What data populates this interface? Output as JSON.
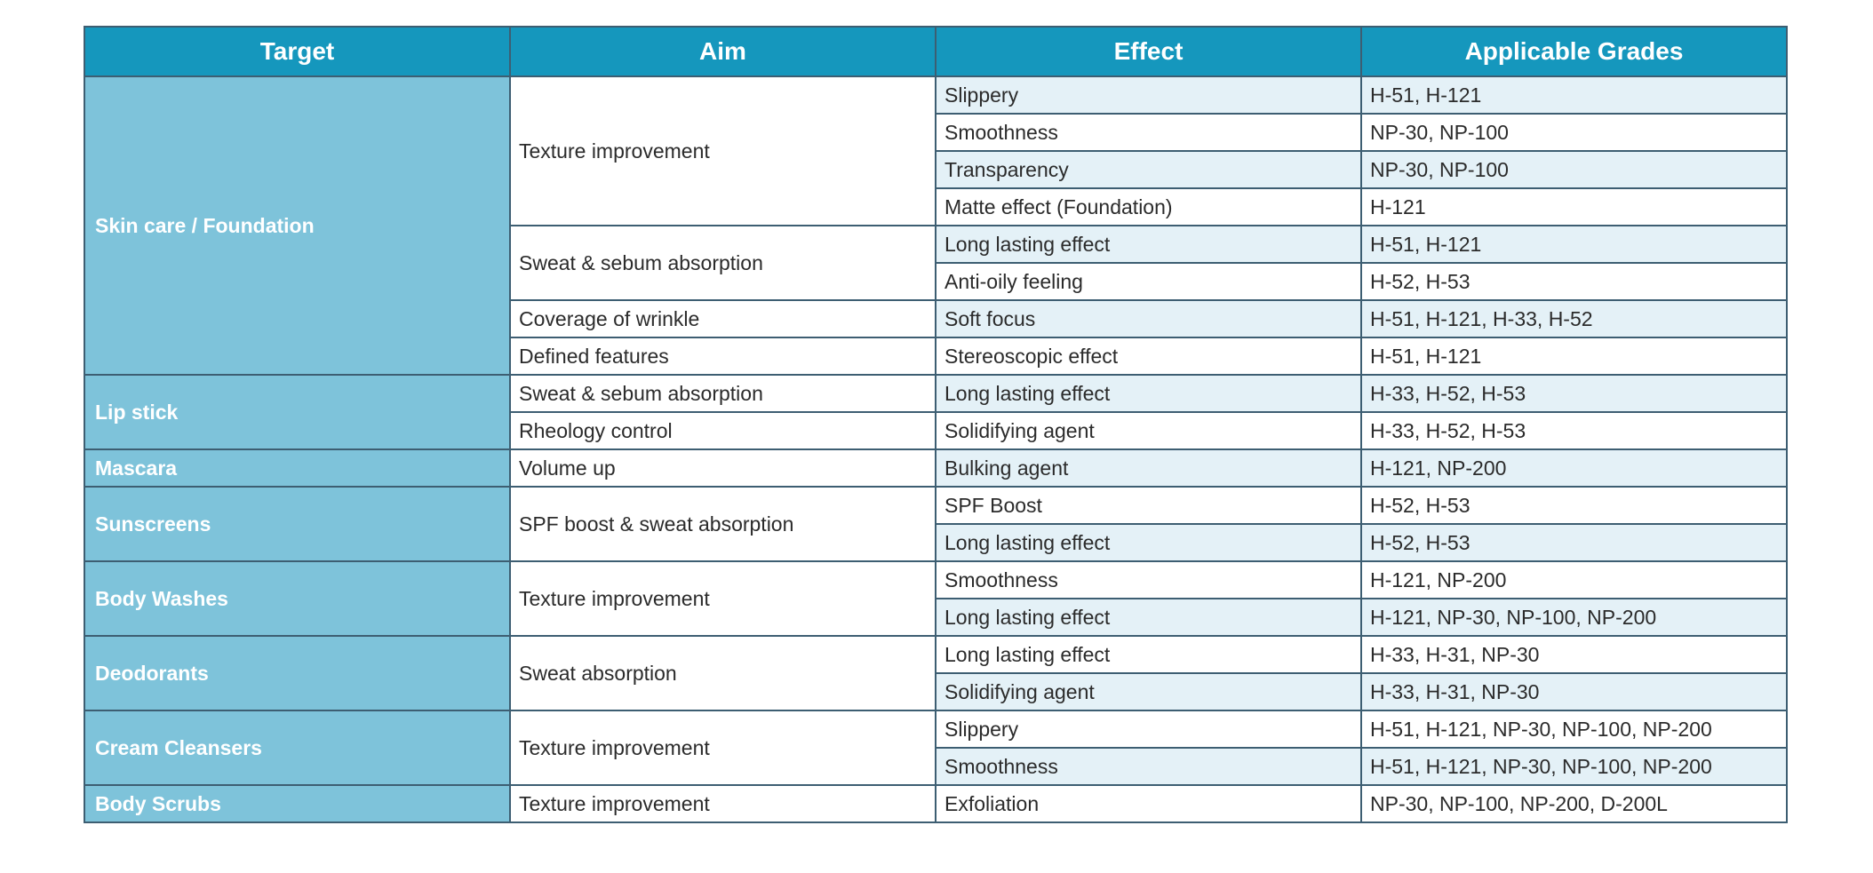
{
  "colors": {
    "header_bg": "#1597bd",
    "target_bg": "#7ec3da",
    "row_shade": "#e4f1f7",
    "border": "#3d5e72"
  },
  "table": {
    "headers": [
      "Target",
      "Aim",
      "Effect",
      "Applicable Grades"
    ],
    "targets": [
      "Skin care / Foundation",
      "Lip stick",
      "Mascara",
      "Sunscreens",
      "Body Washes",
      "Deodorants",
      "Cream Cleansers",
      "Body Scrubs"
    ],
    "aims": [
      "Texture improvement",
      "Sweat & sebum absorption",
      "Coverage of wrinkle",
      "Defined features",
      "Sweat & sebum absorption",
      "Rheology control",
      "Volume up",
      "SPF boost & sweat absorption",
      "Texture improvement",
      "Sweat absorption",
      "Texture improvement",
      "Texture improvement"
    ],
    "rows": [
      {
        "effect": "Slippery",
        "grades": "H-51, H-121"
      },
      {
        "effect": "Smoothness",
        "grades": "NP-30, NP-100"
      },
      {
        "effect": "Transparency",
        "grades": "NP-30, NP-100"
      },
      {
        "effect": "Matte effect (Foundation)",
        "grades": "H-121"
      },
      {
        "effect": "Long lasting effect",
        "grades": "H-51, H-121"
      },
      {
        "effect": "Anti-oily feeling",
        "grades": "H-52, H-53"
      },
      {
        "effect": "Soft focus",
        "grades": "H-51, H-121, H-33, H-52"
      },
      {
        "effect": "Stereoscopic effect",
        "grades": "H-51, H-121"
      },
      {
        "effect": "Long lasting effect",
        "grades": "H-33, H-52, H-53"
      },
      {
        "effect": "Solidifying agent",
        "grades": "H-33, H-52, H-53"
      },
      {
        "effect": "Bulking agent",
        "grades": "H-121, NP-200"
      },
      {
        "effect": "SPF Boost",
        "grades": "H-52, H-53"
      },
      {
        "effect": "Long lasting effect",
        "grades": "H-52, H-53"
      },
      {
        "effect": "Smoothness",
        "grades": "H-121, NP-200"
      },
      {
        "effect": "Long lasting effect",
        "grades": "H-121, NP-30, NP-100, NP-200"
      },
      {
        "effect": "Long lasting effect",
        "grades": "H-33, H-31, NP-30"
      },
      {
        "effect": "Solidifying agent",
        "grades": "H-33, H-31, NP-30"
      },
      {
        "effect": "Slippery",
        "grades": "H-51, H-121, NP-30, NP-100, NP-200"
      },
      {
        "effect": "Smoothness",
        "grades": "H-51, H-121, NP-30, NP-100, NP-200"
      },
      {
        "effect": "Exfoliation",
        "grades": "NP-30, NP-100, NP-200, D-200L"
      }
    ]
  }
}
